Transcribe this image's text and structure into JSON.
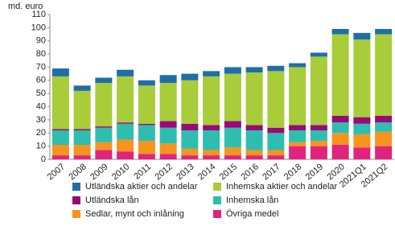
{
  "chart_data": {
    "type": "stacked-bar",
    "y_label": "md. euro",
    "categories": [
      "2007",
      "2008",
      "2009",
      "2010",
      "2011",
      "2012",
      "2013",
      "2014",
      "2015",
      "2016",
      "2017",
      "2018",
      "2019",
      "2020",
      "2021Q1",
      "2021Q2"
    ],
    "series": [
      {
        "name": "Utländska aktier och andelar",
        "color": "#1f6ea8",
        "values": [
          6,
          4,
          4,
          5,
          4,
          6,
          5,
          4,
          5,
          4,
          4,
          3,
          3,
          4,
          5,
          4
        ]
      },
      {
        "name": "Inhemska aktier och andelar",
        "color": "#a9cc3a",
        "values": [
          40,
          29,
          33,
          35,
          29,
          29,
          33,
          37,
          36,
          40,
          43,
          44,
          52,
          62,
          59,
          62
        ]
      },
      {
        "name": "Utländska lån",
        "color": "#990a78",
        "values": [
          1,
          1,
          1,
          1,
          1,
          5,
          5,
          4,
          5,
          4,
          4,
          4,
          4,
          5,
          5,
          5
        ]
      },
      {
        "name": "Inhemska lån",
        "color": "#2fbdb0",
        "values": [
          11,
          11,
          11,
          12,
          12,
          12,
          14,
          15,
          15,
          15,
          13,
          9,
          8,
          8,
          8,
          7
        ]
      },
      {
        "name": "Sedlar, mynt och inlåning",
        "color": "#f7941d",
        "values": [
          8,
          8,
          6,
          9,
          10,
          8,
          5,
          4,
          6,
          4,
          4,
          3,
          4,
          9,
          10,
          11
        ]
      },
      {
        "name": "Övriga medel",
        "color": "#e2237e",
        "values": [
          3,
          3,
          7,
          6,
          4,
          4,
          3,
          3,
          3,
          3,
          3,
          10,
          10,
          11,
          9,
          10
        ]
      }
    ],
    "ylim": [
      0,
      110
    ],
    "yticks": [
      0,
      10,
      20,
      30,
      40,
      50,
      60,
      70,
      80,
      90,
      100,
      110
    ]
  }
}
